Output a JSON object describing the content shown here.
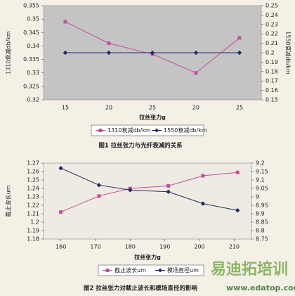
{
  "chart_data": [
    {
      "type": "line",
      "x_label": "拉丝张力g",
      "y_label": "1310衰减db/km",
      "y2_label": "1550衰减db/km",
      "caption": "图1 拉丝张力与光纤衰减的关系",
      "categories": [
        "15",
        "20",
        "25",
        "20",
        "25"
      ],
      "ylim": [
        0.32,
        0.355
      ],
      "yticks": [
        0.32,
        0.325,
        0.33,
        0.335,
        0.34,
        0.345,
        0.35,
        0.355
      ],
      "y2lim": [
        0.15,
        0.25
      ],
      "y2ticks": [
        0.15,
        0.16,
        0.17,
        0.18,
        0.19,
        0.2,
        0.21,
        0.22,
        0.23,
        0.24,
        0.25
      ],
      "plot_background": "#c4c4c4",
      "legend": "bottom",
      "series": [
        {
          "name": "1310衰减db/km",
          "color": "#c0509a",
          "marker": "square",
          "values": [
            0.349,
            0.341,
            0.337,
            0.33,
            0.343
          ]
        },
        {
          "name": "1550衰减db/km",
          "color": "#1f2a6b",
          "marker": "diamond",
          "axis": "y2",
          "values": [
            0.2,
            0.2,
            0.2,
            0.2,
            0.2
          ]
        }
      ]
    },
    {
      "type": "line",
      "x_label": "拉丝张力g",
      "y_label": "截止波长um",
      "caption": "图2 拉丝张力对截止波长和模场直径的影响",
      "x": [
        160,
        171,
        180,
        191,
        201,
        211
      ],
      "xlim": [
        155,
        215
      ],
      "xticks": [
        160,
        170,
        180,
        190,
        200,
        210
      ],
      "ylim": [
        1.18,
        1.27
      ],
      "yticks": [
        1.18,
        1.19,
        1.2,
        1.21,
        1.22,
        1.23,
        1.24,
        1.25,
        1.26,
        1.27
      ],
      "y2lim": [
        8.75,
        9.2
      ],
      "y2ticks": [
        8.75,
        8.8,
        8.85,
        8.9,
        8.95,
        9,
        9.05,
        9.1,
        9.15,
        9.2
      ],
      "plot_background": "#efebe2",
      "legend": "bottom",
      "series": [
        {
          "name": "截止波长um",
          "color": "#c0509a",
          "marker": "square",
          "values": [
            1.212,
            1.231,
            1.24,
            1.243,
            1.255,
            1.259
          ]
        },
        {
          "name": "模场直径um",
          "color": "#1f2a6b",
          "marker": "diamond",
          "axis": "y2",
          "values": [
            9.17,
            9.07,
            9.04,
            9.03,
            8.96,
            8.92
          ]
        }
      ]
    }
  ],
  "watermark": {
    "brand": "易迪拓培训",
    "url": "www.edatop.com"
  }
}
